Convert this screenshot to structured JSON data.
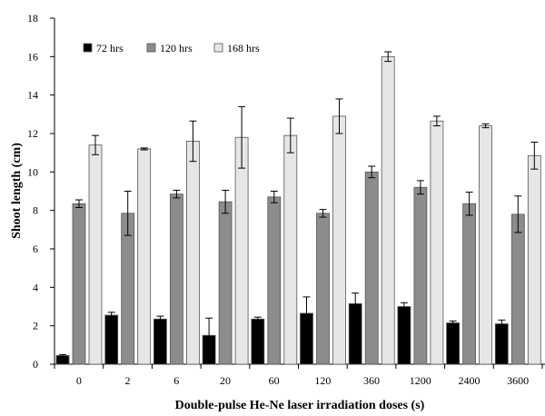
{
  "chart_data": {
    "type": "bar",
    "title": "",
    "xlabel": "Double-pulse He-Ne laser irradiation doses (s)",
    "ylabel": "Shoot length (cm)",
    "ylim": [
      0,
      18
    ],
    "yticks": [
      0,
      2,
      4,
      6,
      8,
      10,
      12,
      14,
      16,
      18
    ],
    "grid": false,
    "legend_position": "top-left",
    "categories": [
      "0",
      "2",
      "6",
      "20",
      "60",
      "120",
      "360",
      "1200",
      "2400",
      "3600"
    ],
    "series": [
      {
        "name": "72 hrs",
        "color": "#000000",
        "values": [
          0.45,
          2.55,
          2.35,
          1.5,
          2.35,
          2.65,
          3.15,
          3.0,
          2.15,
          2.1
        ],
        "errors": [
          0.05,
          0.15,
          0.15,
          0.9,
          0.1,
          0.85,
          0.55,
          0.2,
          0.1,
          0.2
        ]
      },
      {
        "name": "120 hrs",
        "color": "#8c8c8c",
        "values": [
          8.35,
          7.85,
          8.85,
          8.45,
          8.7,
          7.85,
          10.0,
          9.2,
          8.35,
          7.8
        ],
        "errors": [
          0.2,
          1.15,
          0.2,
          0.6,
          0.3,
          0.2,
          0.3,
          0.35,
          0.6,
          0.95
        ]
      },
      {
        "name": "168 hrs",
        "color": "#e6e6e6",
        "values": [
          11.4,
          11.2,
          11.6,
          11.8,
          11.9,
          12.9,
          16.0,
          12.65,
          12.4,
          10.85
        ],
        "errors": [
          0.5,
          0.05,
          1.05,
          1.6,
          0.9,
          0.9,
          0.25,
          0.25,
          0.1,
          0.7
        ]
      }
    ]
  }
}
